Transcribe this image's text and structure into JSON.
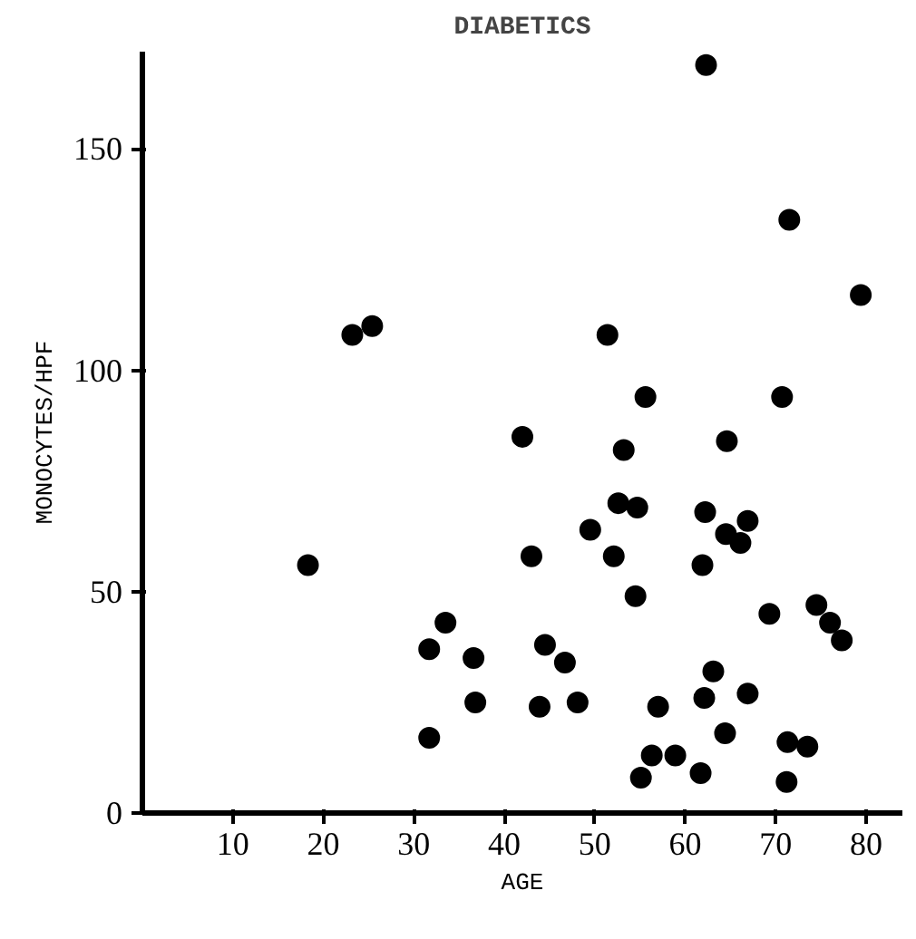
{
  "chart_data": {
    "type": "scatter",
    "title": "DIABETICS",
    "xlabel": "AGE",
    "ylabel": "MONOCYTES/HPF",
    "x": [
      62.3,
      71.5,
      79.4,
      23.2,
      25.4,
      51.4,
      55.6,
      70.7,
      42,
      53.2,
      64.6,
      18.3,
      52.6,
      54.7,
      62.2,
      49.5,
      64.5,
      66.9,
      66.1,
      43,
      52.1,
      61.9,
      54.5,
      69.3,
      74.5,
      76,
      77.3,
      33.5,
      31.7,
      36.6,
      44.5,
      46.7,
      36.8,
      43.9,
      48.1,
      57,
      63.1,
      62.1,
      66.9,
      31.7,
      56.3,
      58.9,
      61.7,
      64.4,
      71.3,
      73.5,
      55.1,
      71.2
    ],
    "values": [
      169,
      134,
      117,
      108,
      110,
      108,
      94,
      94,
      85,
      82,
      84,
      56,
      70,
      69,
      68,
      64,
      63,
      66,
      61,
      58,
      58,
      56,
      49,
      45,
      47,
      43,
      39,
      43,
      37,
      35,
      38,
      34,
      25,
      24,
      25,
      24,
      32,
      26,
      27,
      17,
      13,
      13,
      9,
      18,
      16,
      15,
      8,
      7
    ],
    "color": "#000000",
    "marker": "circle",
    "grid": false,
    "xlim": [
      0,
      84
    ],
    "xticks": [
      10,
      20,
      30,
      40,
      50,
      60,
      70,
      80
    ],
    "ylim": [
      0,
      172
    ],
    "yticks": [
      0,
      50,
      100,
      150
    ]
  }
}
